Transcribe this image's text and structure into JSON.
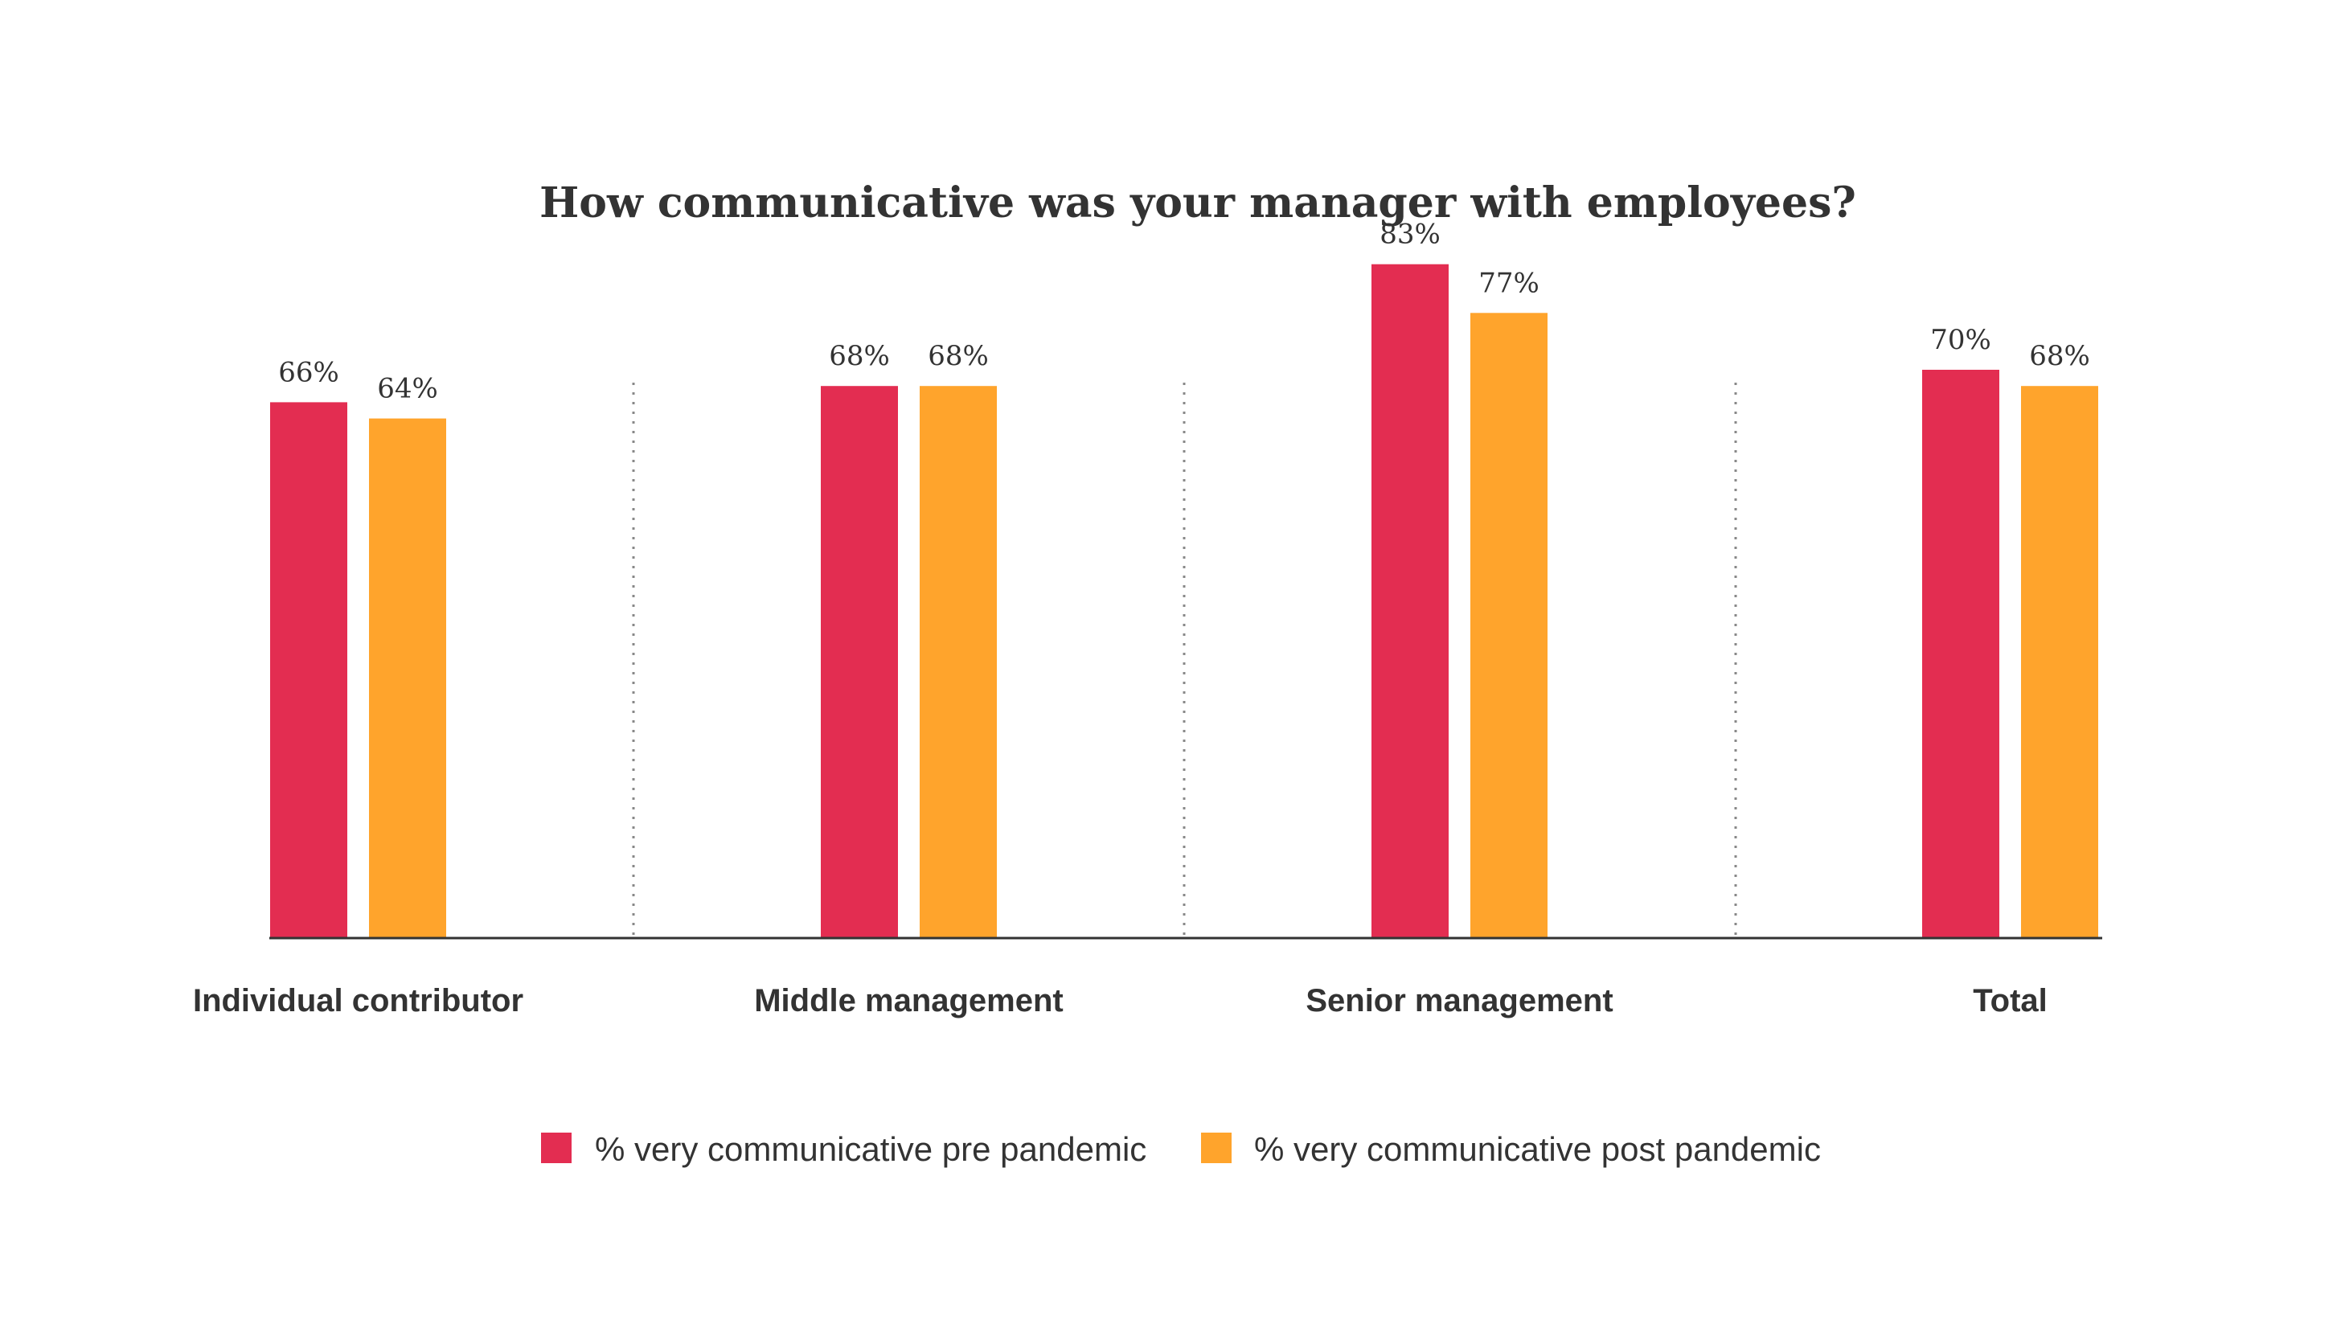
{
  "chart_data": {
    "type": "bar",
    "title": "How communicative was your manager with employees?",
    "categories": [
      "Individual contributor",
      "Middle management",
      "Senior management",
      "Total"
    ],
    "series": [
      {
        "name": "% very communicative pre pandemic",
        "color": "#E32D51",
        "values": [
          66,
          68,
          83,
          70
        ],
        "labels": [
          "66%",
          "68%",
          "83%",
          "70%"
        ]
      },
      {
        "name": "% very communicative post pandemic",
        "color": "#FFA42C",
        "values": [
          64,
          68,
          77,
          68
        ],
        "labels": [
          "64%",
          "68%",
          "77%",
          "68%"
        ]
      }
    ],
    "ylim": [
      0,
      100
    ],
    "grid": false,
    "legend": "bottom-center",
    "separators": "dotted vertical between categories"
  }
}
